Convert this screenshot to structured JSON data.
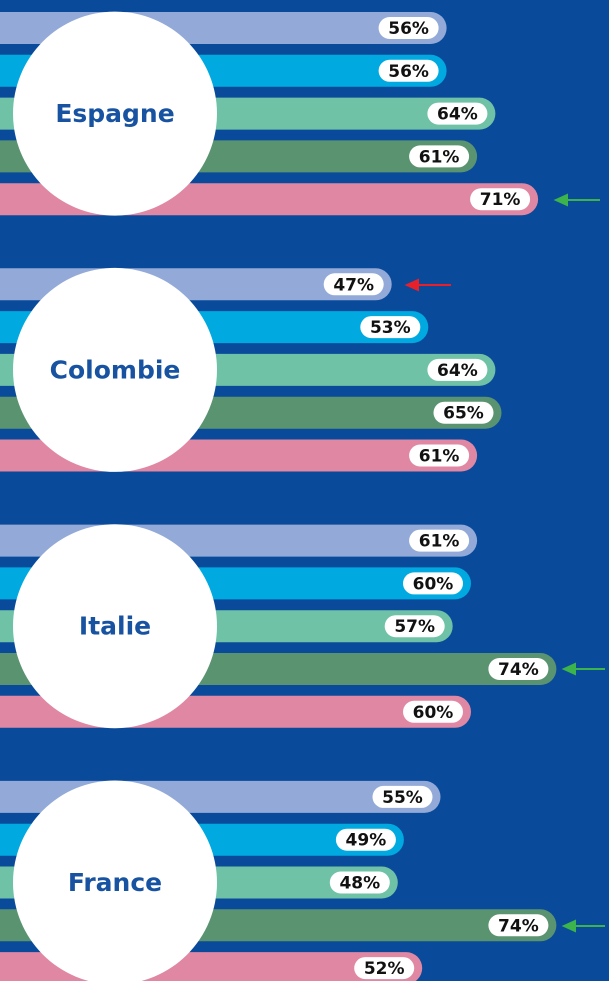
{
  "chart_data": {
    "type": "bar",
    "categories": [
      "Espagne",
      "Colombie",
      "Italie",
      "France"
    ],
    "series": [
      {
        "color": "#93aad8",
        "values": [
          56,
          47,
          61,
          55
        ],
        "value_labels": [
          "56%",
          "47%",
          "61%",
          "55%"
        ]
      },
      {
        "color": "#00a9e0",
        "values": [
          56,
          53,
          60,
          49
        ],
        "value_labels": [
          "56%",
          "53%",
          "60%",
          "49%"
        ]
      },
      {
        "color": "#6fc2a6",
        "values": [
          64,
          64,
          57,
          48
        ],
        "value_labels": [
          "64%",
          "64%",
          "57%",
          "48%"
        ]
      },
      {
        "color": "#5a9370",
        "values": [
          61,
          65,
          74,
          74
        ],
        "value_labels": [
          "61%",
          "65%",
          "74%",
          "74%"
        ]
      },
      {
        "color": "#e087a3",
        "values": [
          71,
          61,
          60,
          52
        ],
        "value_labels": [
          "71%",
          "61%",
          "60%",
          "52%"
        ]
      }
    ]
  }
}
